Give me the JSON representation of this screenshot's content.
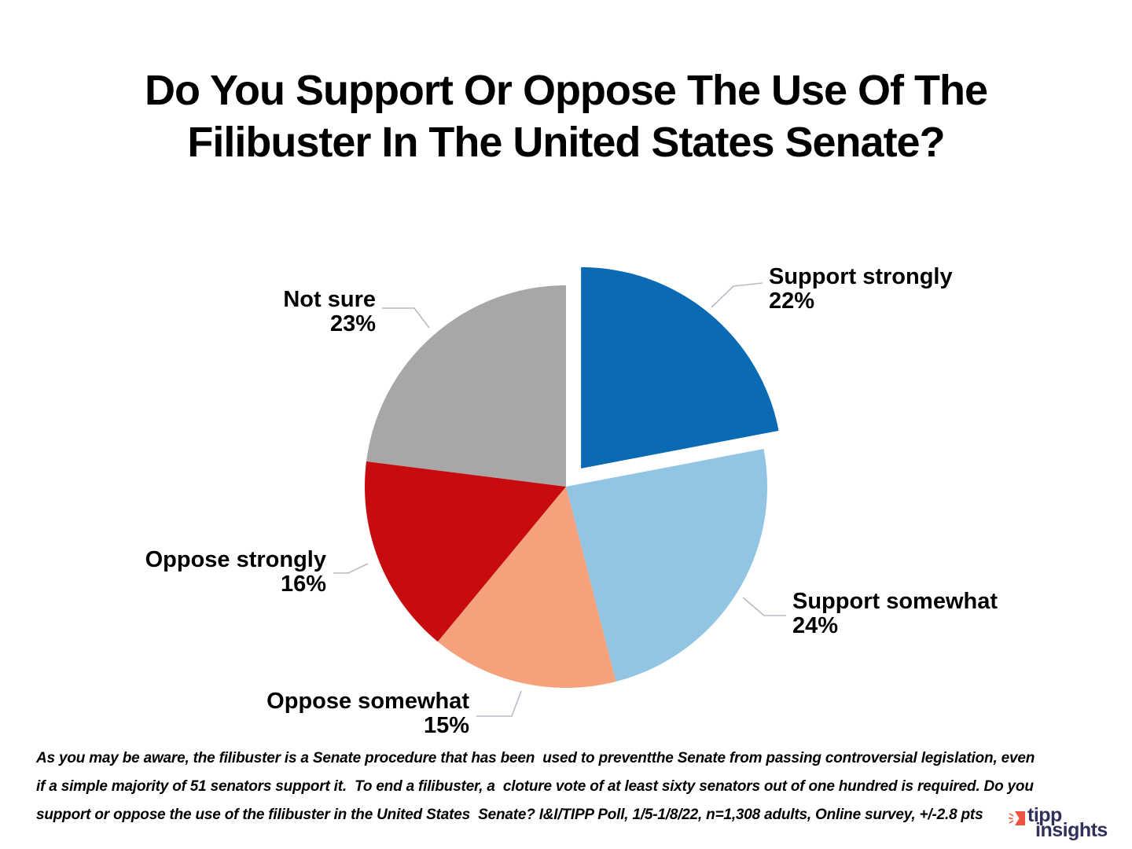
{
  "title": {
    "line1": "Do You Support Or Oppose The Use Of The",
    "line2": "Filibuster In The United States Senate?"
  },
  "chart_data": {
    "type": "pie",
    "title": "Do You Support Or Oppose The Use Of The Filibuster In The United States Senate?",
    "start_angle_deg": 0,
    "direction": "clockwise",
    "legend_position": "none",
    "labels_style": "external-callouts",
    "slices": [
      {
        "label": "Support strongly",
        "value": 22,
        "pct_label": "22%",
        "color": "#0A6AB4",
        "exploded": true
      },
      {
        "label": "Support somewhat",
        "value": 24,
        "pct_label": "24%",
        "color": "#92C5E4",
        "exploded": false
      },
      {
        "label": "Oppose somewhat",
        "value": 15,
        "pct_label": "15%",
        "color": "#F4A17C",
        "exploded": false
      },
      {
        "label": "Oppose strongly",
        "value": 16,
        "pct_label": "16%",
        "color": "#C80B0F",
        "exploded": false
      },
      {
        "label": "Not sure",
        "value": 23,
        "pct_label": "23%",
        "color": "#A7A7A7",
        "exploded": false
      }
    ]
  },
  "footnote": {
    "lines": [
      "As you may be aware, the filibuster is a Senate procedure that has been  used to preventthe Senate from passing controversial legislation, even",
      "if a simple majority of 51 senators support it.  To end a filibuster, a  cloture vote of at least sixty senators out of one hundred is required. Do you",
      "support or oppose the use of the filibuster in the United States  Senate? I&I/TIPP Poll, 1/5-1/8/22, n=1,308 adults, Online survey, +/-2.8 pts"
    ]
  },
  "logo": {
    "line1": "tipp",
    "line2": "insights",
    "icon": "fast-forward-arrow-icon",
    "icon_color": "#EE5442",
    "text_color": "#31305C"
  }
}
